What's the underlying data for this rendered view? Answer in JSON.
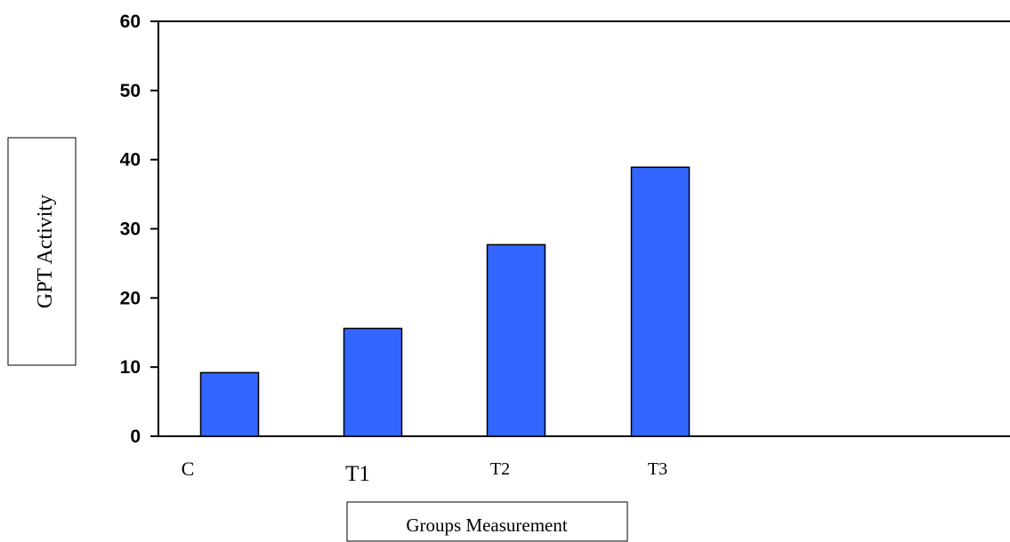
{
  "chart_data": {
    "type": "bar",
    "categories": [
      "C",
      "T1",
      "T2",
      "T3"
    ],
    "values": [
      9.2,
      15.6,
      27.7,
      38.9
    ],
    "ylim": [
      0,
      60
    ],
    "yticks": [
      0,
      10,
      20,
      30,
      40,
      50,
      60
    ],
    "xlabel": "Groups Measurement",
    "ylabel": "GPT Activity",
    "grid": false,
    "bar_color": "#3366ff"
  }
}
